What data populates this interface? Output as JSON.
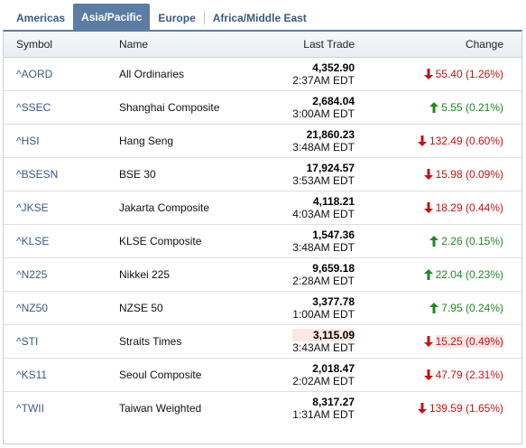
{
  "tabs": [
    "Americas",
    "Asia/Pacific",
    "Europe",
    "Africa/Middle East"
  ],
  "active_tab": "Asia/Pacific",
  "headers": {
    "symbol": "Symbol",
    "name": "Name",
    "last_trade": "Last Trade",
    "change": "Change"
  },
  "colors": {
    "up": "#1e8a1e",
    "down": "#c81010",
    "tab_active": "#5b7ca3",
    "link": "#3a5a82"
  },
  "rows": [
    {
      "symbol": "^AORD",
      "name": "All Ordinaries",
      "price": "4,352.90",
      "time": "2:37AM EDT",
      "direction": "down",
      "change": "55.40 (1.26%)"
    },
    {
      "symbol": "^SSEC",
      "name": "Shanghai Composite",
      "price": "2,684.04",
      "time": "3:00AM EDT",
      "direction": "up",
      "change": "5.55 (0.21%)"
    },
    {
      "symbol": "^HSI",
      "name": "Hang Seng",
      "price": "21,860.23",
      "time": "3:48AM EDT",
      "direction": "down",
      "change": "132.49 (0.60%)"
    },
    {
      "symbol": "^BSESN",
      "name": "BSE 30",
      "price": "17,924.57",
      "time": "3:53AM EDT",
      "direction": "down",
      "change": "15.98 (0.09%)"
    },
    {
      "symbol": "^JKSE",
      "name": "Jakarta Composite",
      "price": "4,118.21",
      "time": "4:03AM EDT",
      "direction": "down",
      "change": "18.29 (0.44%)"
    },
    {
      "symbol": "^KLSE",
      "name": "KLSE Composite",
      "price": "1,547.36",
      "time": "3:48AM EDT",
      "direction": "up",
      "change": "2.26 (0.15%)"
    },
    {
      "symbol": "^N225",
      "name": "Nikkei 225",
      "price": "9,659.18",
      "time": "2:28AM EDT",
      "direction": "up",
      "change": "22.04 (0.23%)"
    },
    {
      "symbol": "^NZ50",
      "name": "NZSE 50",
      "price": "3,377.78",
      "time": "1:00AM EDT",
      "direction": "up",
      "change": "7.95 (0.24%)"
    },
    {
      "symbol": "^STI",
      "name": "Straits Times",
      "price": "3,115.09",
      "time": "3:43AM EDT",
      "direction": "down",
      "change": "15.25 (0.49%)",
      "highlight": true
    },
    {
      "symbol": "^KS11",
      "name": "Seoul Composite",
      "price": "2,018.47",
      "time": "2:02AM EDT",
      "direction": "down",
      "change": "47.79 (2.31%)"
    },
    {
      "symbol": "^TWII",
      "name": "Taiwan Weighted",
      "price": "8,317.27",
      "time": "1:31AM EDT",
      "direction": "down",
      "change": "139.59 (1.65%)"
    }
  ]
}
